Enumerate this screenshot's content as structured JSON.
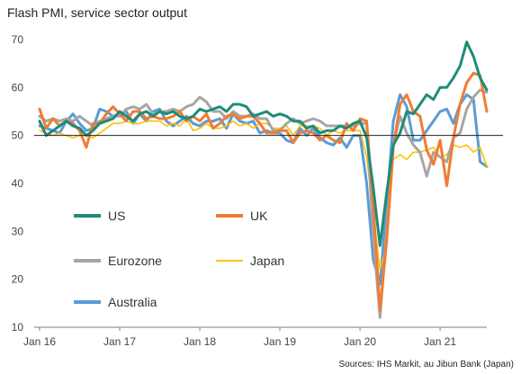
{
  "chart_data": {
    "type": "line",
    "title": "Flash PMI, service sector output",
    "source": "Sources: IHS Markit, au Jibun Bank (Japan)",
    "ylim": [
      10,
      70
    ],
    "y_ticks": [
      10,
      20,
      30,
      40,
      50,
      60,
      70
    ],
    "x_ticks": [
      "Jan 16",
      "Jan 17",
      "Jan 18",
      "Jan 19",
      "Jan 20",
      "Jan 21"
    ],
    "reference_line": 50,
    "legend_placement": "lower-left",
    "series": [
      {
        "name": "US",
        "color": "#1e8c78",
        "values": [
          53.0,
          50.0,
          51.0,
          52.0,
          53.0,
          52.0,
          51.5,
          50.0,
          51.0,
          52.5,
          53.0,
          53.5,
          55.0,
          54.0,
          53.0,
          54.5,
          55.0,
          54.0,
          55.0,
          54.5,
          55.0,
          54.0,
          53.5,
          54.0,
          55.5,
          55.0,
          55.5,
          56.0,
          55.0,
          56.5,
          56.5,
          56.0,
          54.0,
          54.5,
          55.0,
          54.0,
          54.5,
          54.0,
          53.0,
          53.0,
          51.5,
          52.0,
          50.5,
          51.0,
          51.0,
          52.0,
          51.5,
          52.5,
          53.0,
          49.5,
          39.0,
          27.0,
          38.0,
          48.0,
          50.5,
          55.0,
          54.5,
          56.5,
          58.5,
          57.5,
          60.0,
          60.0,
          62.0,
          64.5,
          69.5,
          66.5,
          62.0,
          59.5
        ]
      },
      {
        "name": "UK",
        "color": "#f07c34",
        "values": [
          55.5,
          51.5,
          53.5,
          52.0,
          53.0,
          52.5,
          51.0,
          47.5,
          52.5,
          52.5,
          54.5,
          56.0,
          54.5,
          53.0,
          55.0,
          55.0,
          53.5,
          54.0,
          53.5,
          53.5,
          54.0,
          55.0,
          53.0,
          54.0,
          53.0,
          54.5,
          51.5,
          52.5,
          54.0,
          54.5,
          53.5,
          54.0,
          54.0,
          52.5,
          50.5,
          50.5,
          51.0,
          51.0,
          48.5,
          50.5,
          51.0,
          50.5,
          49.0,
          50.0,
          49.0,
          48.5,
          52.5,
          51.0,
          53.5,
          53.0,
          35.0,
          13.5,
          28.0,
          47.5,
          56.5,
          58.5,
          55.0,
          54.0,
          47.0,
          44.0,
          49.0,
          39.5,
          49.5,
          56.5,
          61.0,
          63.0,
          62.5,
          55.0
        ]
      },
      {
        "name": "Eurozone",
        "color": "#a6a6a6",
        "values": [
          54.0,
          53.0,
          53.5,
          53.0,
          53.5,
          53.0,
          54.0,
          53.0,
          52.0,
          53.0,
          53.5,
          54.0,
          54.0,
          55.5,
          56.0,
          55.5,
          56.5,
          54.5,
          55.0,
          55.0,
          55.5,
          55.0,
          56.0,
          56.5,
          58.0,
          57.0,
          55.0,
          55.0,
          53.5,
          55.0,
          54.0,
          54.0,
          54.5,
          53.5,
          53.5,
          51.0,
          51.0,
          52.5,
          53.5,
          52.5,
          53.0,
          53.5,
          53.0,
          52.0,
          52.0,
          52.0,
          52.0,
          52.0,
          52.5,
          52.5,
          29.0,
          12.0,
          30.0,
          48.0,
          54.0,
          50.5,
          48.0,
          46.5,
          41.5,
          46.5,
          45.5,
          44.5,
          49.5,
          50.5,
          55.5,
          58.0,
          59.5,
          59.0
        ]
      },
      {
        "name": "Japan",
        "color": "#ffc000",
        "values": [
          51.0,
          50.5,
          50.0,
          50.5,
          50.0,
          49.5,
          50.0,
          50.0,
          49.5,
          50.5,
          51.5,
          52.5,
          52.5,
          53.0,
          52.5,
          52.5,
          53.0,
          53.0,
          53.0,
          52.0,
          52.5,
          52.0,
          53.5,
          51.0,
          51.5,
          52.5,
          51.5,
          51.5,
          52.0,
          53.0,
          52.0,
          52.5,
          51.5,
          52.5,
          52.5,
          51.5,
          51.5,
          52.0,
          50.0,
          52.0,
          52.0,
          52.0,
          51.5,
          50.0,
          51.0,
          50.5,
          51.0,
          51.0,
          51.0,
          45.5,
          33.5,
          22.0,
          27.0,
          45.0,
          46.0,
          45.0,
          46.5,
          46.5,
          47.0,
          47.5,
          45.5,
          46.0,
          48.0,
          47.5,
          48.0,
          46.5,
          47.5,
          43.5
        ]
      },
      {
        "name": "Australia",
        "color": "#5b9bd5",
        "values": [
          52.0,
          51.5,
          51.0,
          50.5,
          53.0,
          54.5,
          52.5,
          51.0,
          51.5,
          55.5,
          55.0,
          54.0,
          54.5,
          55.0,
          52.5,
          54.5,
          53.0,
          55.0,
          55.5,
          53.0,
          52.0,
          53.0,
          54.0,
          52.5,
          52.0,
          53.0,
          53.0,
          53.5,
          51.5,
          54.5,
          53.0,
          52.5,
          53.0,
          50.5,
          51.0,
          50.5,
          50.5,
          49.0,
          48.5,
          51.5,
          50.0,
          51.5,
          49.5,
          48.5,
          48.0,
          49.5,
          47.5,
          50.0,
          50.0,
          40.0,
          24.0,
          19.0,
          35.5,
          53.0,
          58.5,
          56.0,
          49.0,
          49.0,
          51.0,
          53.0,
          55.0,
          55.5,
          52.5,
          56.5,
          58.5,
          57.5,
          44.5,
          43.5
        ]
      }
    ]
  }
}
